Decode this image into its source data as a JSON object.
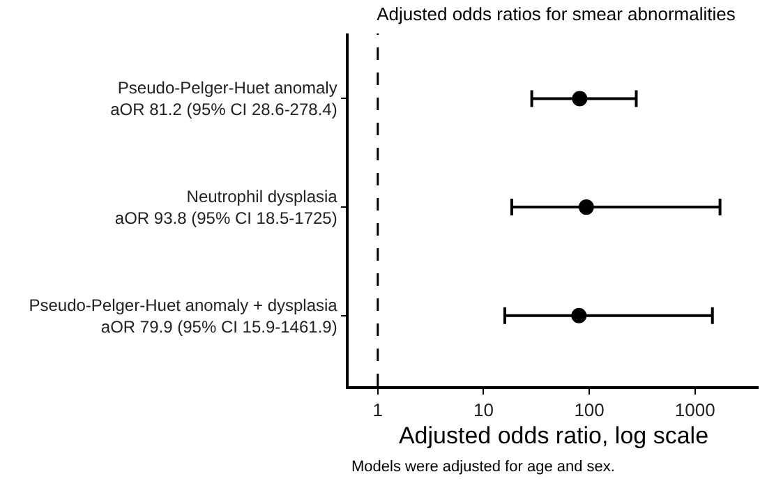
{
  "chart_data": {
    "type": "scatter",
    "orientation": "horizontal",
    "title": "Adjusted odds ratios for smear abnormalities",
    "xlabel": "Adjusted odds ratio, log scale",
    "categories": [
      "Pseudo-Pelger-Huet anomaly\naOR 81.2 (95% CI 28.6-278.4)",
      "Neutrophil dysplasia\naOR 93.8 (95% CI 18.5-1725)",
      "Pseudo-Pelger-Huet anomaly + dysplasia\naOR 79.9 (95% CI 15.9-1461.9)"
    ],
    "values": [
      81.2,
      93.8,
      79.9
    ],
    "errors": [
      [
        28.6,
        278.4
      ],
      [
        18.5,
        1725
      ],
      [
        15.9,
        1461.9
      ]
    ],
    "color": "#000000",
    "marker": "circle",
    "log": "x",
    "xlim": [
      0.53,
      4000
    ],
    "xticks": [
      1,
      10,
      100,
      1000
    ],
    "ref_lines": [
      {
        "axis": "x",
        "value": 1,
        "line_style": "dashed",
        "color": "#000000"
      }
    ],
    "annotations": [
      "Models were adjusted for age and sex."
    ]
  }
}
